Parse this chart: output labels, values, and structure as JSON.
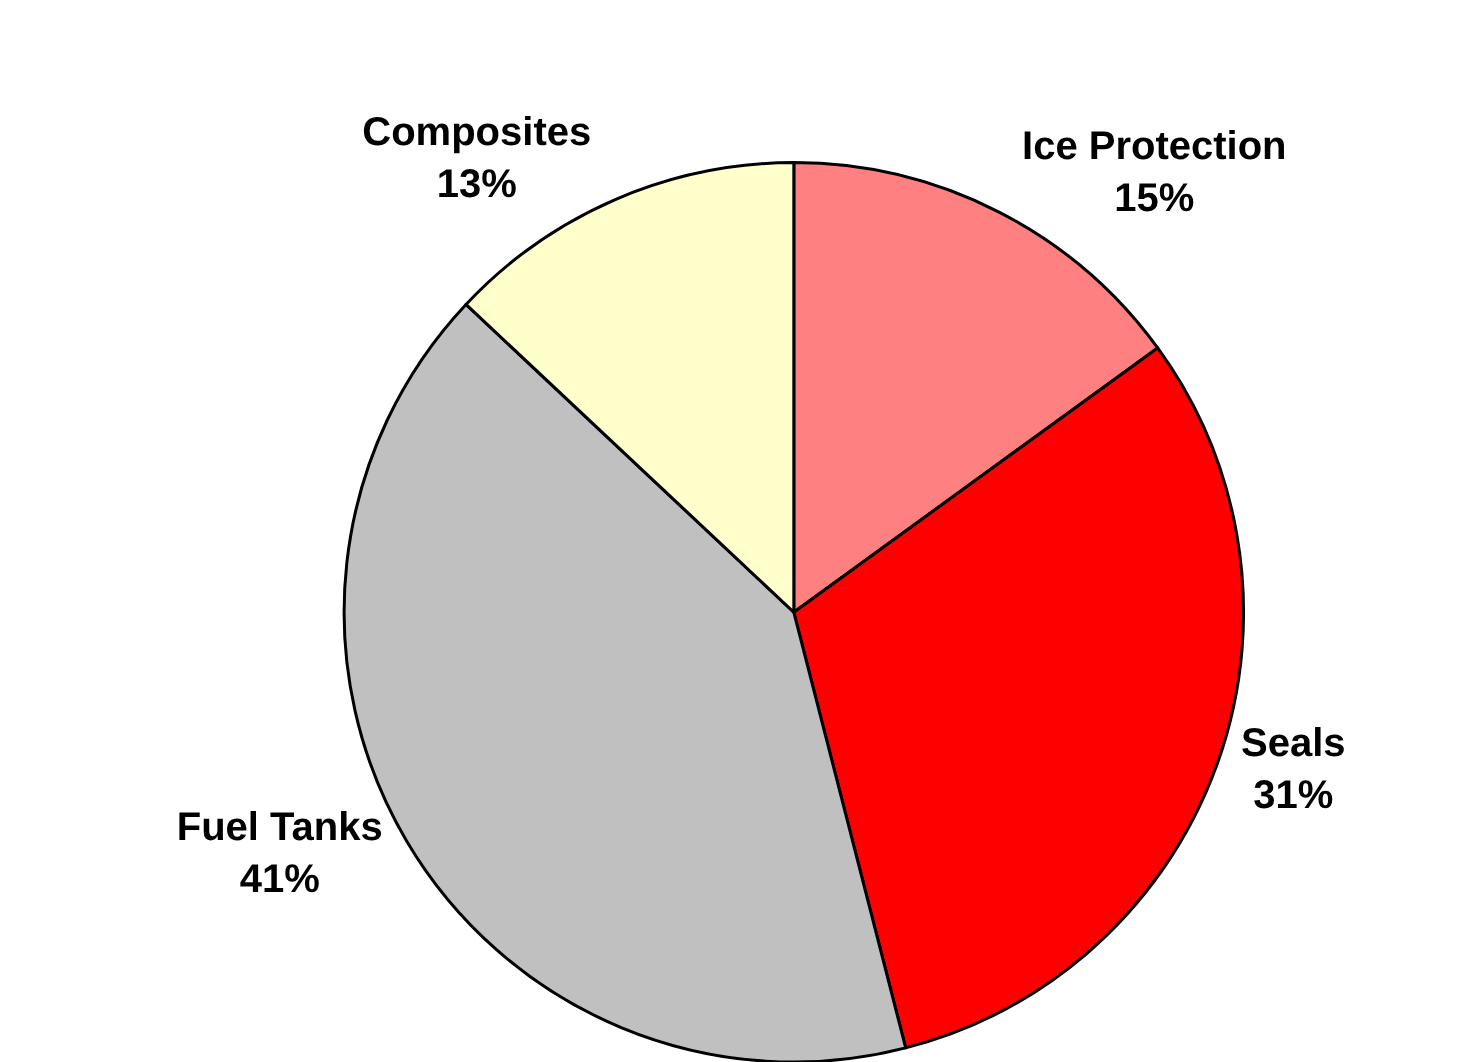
{
  "chart_data": {
    "type": "pie",
    "categories": [
      "Ice Protection",
      "Seals",
      "Fuel Tanks",
      "Composites"
    ],
    "values": [
      15,
      31,
      41,
      13
    ],
    "value_labels": [
      "15%",
      "31%",
      "41%",
      "13%"
    ],
    "colors": [
      "#ff8080",
      "#ff0000",
      "#c0c0c0",
      "#ffffcc"
    ],
    "legend": false
  }
}
